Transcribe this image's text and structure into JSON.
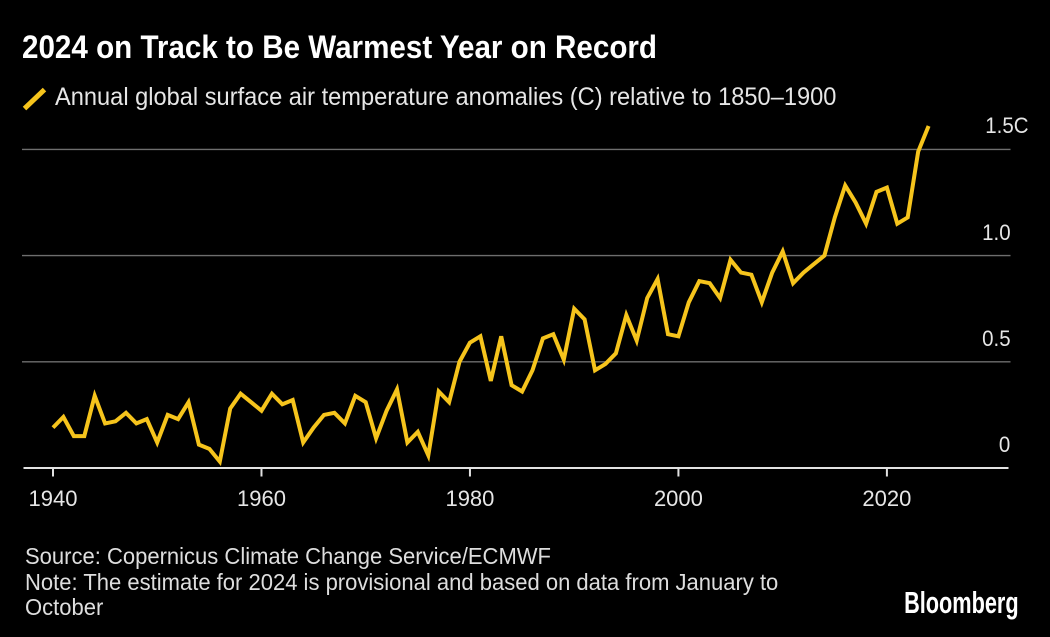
{
  "header": {
    "title": "2024 on Track to Be Warmest Year on Record",
    "legend": {
      "marker": "yellow-slash",
      "label": "Annual global surface air temperature anomalies (C) relative to 1850–1900"
    }
  },
  "footer": {
    "source": "Source: Copernicus Climate Change Service/ECMWF",
    "note": "Note: The estimate for 2024 is provisional and based on data from January to October",
    "brand": "Bloomberg"
  },
  "colors": {
    "background": "#000000",
    "line": "#F6C41C",
    "grid": "#6E6E6E",
    "axis": "#E2E2E2",
    "title_text": "#FFFFFF",
    "secondary_text": "#E6E6E6"
  },
  "chart_data": {
    "type": "line",
    "title": "2024 on Track to Be Warmest Year on Record",
    "series_name": "Annual global surface air temperature anomalies (C) relative to 1850–1900",
    "xlabel": "",
    "ylabel": "",
    "unit": "C",
    "grid": true,
    "legend_position": "top-left",
    "xlim": [
      1940,
      2032
    ],
    "ylim": [
      0,
      1.65
    ],
    "x_ticks": [
      1940,
      1960,
      1980,
      2000,
      2020
    ],
    "y_ticks": [
      {
        "value": 0,
        "label": "0"
      },
      {
        "value": 0.5,
        "label": "0.5"
      },
      {
        "value": 1.0,
        "label": "1.0"
      },
      {
        "value": 1.5,
        "label": "1.5C"
      }
    ],
    "x": [
      1940,
      1941,
      1942,
      1943,
      1944,
      1945,
      1946,
      1947,
      1948,
      1949,
      1950,
      1951,
      1952,
      1953,
      1954,
      1955,
      1956,
      1957,
      1958,
      1959,
      1960,
      1961,
      1962,
      1963,
      1964,
      1965,
      1966,
      1967,
      1968,
      1969,
      1970,
      1971,
      1972,
      1973,
      1974,
      1975,
      1976,
      1977,
      1978,
      1979,
      1980,
      1981,
      1982,
      1983,
      1984,
      1985,
      1986,
      1987,
      1988,
      1989,
      1990,
      1991,
      1992,
      1993,
      1994,
      1995,
      1996,
      1997,
      1998,
      1999,
      2000,
      2001,
      2002,
      2003,
      2004,
      2005,
      2006,
      2007,
      2008,
      2009,
      2010,
      2011,
      2012,
      2013,
      2014,
      2015,
      2016,
      2017,
      2018,
      2019,
      2020,
      2021,
      2022,
      2023,
      2024
    ],
    "values": [
      0.19,
      0.24,
      0.15,
      0.15,
      0.34,
      0.21,
      0.22,
      0.26,
      0.21,
      0.23,
      0.12,
      0.25,
      0.23,
      0.31,
      0.11,
      0.09,
      0.03,
      0.28,
      0.35,
      0.31,
      0.27,
      0.35,
      0.3,
      0.32,
      0.12,
      0.19,
      0.25,
      0.26,
      0.21,
      0.34,
      0.31,
      0.14,
      0.27,
      0.37,
      0.12,
      0.17,
      0.06,
      0.36,
      0.31,
      0.5,
      0.59,
      0.62,
      0.41,
      0.62,
      0.39,
      0.36,
      0.46,
      0.61,
      0.63,
      0.51,
      0.75,
      0.7,
      0.46,
      0.49,
      0.54,
      0.72,
      0.6,
      0.8,
      0.89,
      0.63,
      0.62,
      0.78,
      0.88,
      0.87,
      0.8,
      0.98,
      0.92,
      0.91,
      0.78,
      0.92,
      1.02,
      0.87,
      0.92,
      0.96,
      1.0,
      1.18,
      1.33,
      1.25,
      1.15,
      1.3,
      1.32,
      1.15,
      1.18,
      1.49,
      1.61
    ]
  }
}
